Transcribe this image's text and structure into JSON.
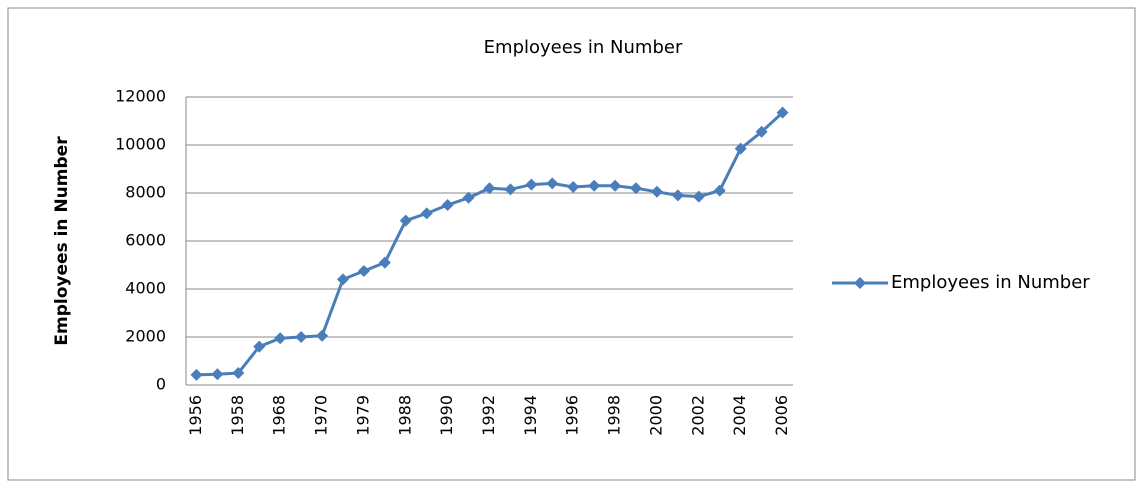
{
  "chart_data": {
    "type": "line",
    "title": "Employees in Number",
    "y_label": "Employees in Number",
    "categories": [
      "1956",
      null,
      "1958",
      null,
      "1968",
      null,
      "1970",
      null,
      "1979",
      null,
      "1988",
      null,
      "1990",
      null,
      "1992",
      null,
      "1994",
      null,
      "1996",
      null,
      "1998",
      null,
      "2000",
      null,
      "2002",
      null,
      "2004",
      null,
      "2006"
    ],
    "series": [
      {
        "name": "Employees in Number",
        "color": "#4a7ebb",
        "values": [
          420,
          450,
          500,
          1600,
          1950,
          2000,
          2050,
          4400,
          4750,
          5100,
          6850,
          7150,
          7500,
          7800,
          8200,
          8150,
          8350,
          8400,
          8250,
          8300,
          8300,
          8200,
          8050,
          7900,
          7850,
          8100,
          9850,
          10550,
          11350
        ]
      }
    ],
    "ylim": [
      0,
      12000
    ],
    "yticks": [
      0,
      2000,
      4000,
      6000,
      8000,
      10000,
      12000
    ],
    "grid": true,
    "legend": "right"
  }
}
